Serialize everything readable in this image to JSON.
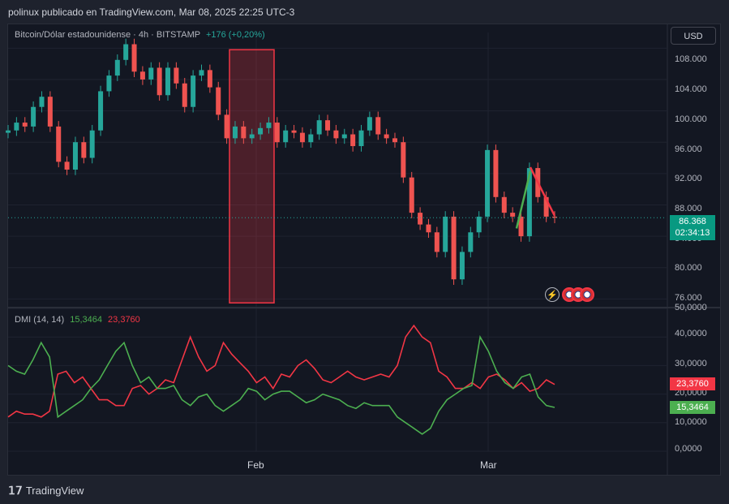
{
  "header": {
    "attribution": "polinux publicado en TradingView.com, Mar 08, 2025 22:25 UTC-3"
  },
  "legend": {
    "symbol": "Bitcoin/Dólar estadounidense · 4h · BITSTAMP",
    "change": "+176 (+0,20%)"
  },
  "currency_button": "USD",
  "price_axis": [
    "108.000",
    "104.000",
    "100.000",
    "96.000",
    "92.000",
    "88.000",
    "84.000",
    "80.000",
    "76.000"
  ],
  "last_price": {
    "value": "86.368",
    "countdown": "02:34:13"
  },
  "dmi": {
    "label": "DMI (14, 14)",
    "plus_value": "15,3464",
    "minus_value": "23,3760"
  },
  "dmi_axis": [
    "50,0000",
    "40,0000",
    "30,0000",
    "20,0000",
    "10,0000",
    "0,0000"
  ],
  "x_axis": [
    "Feb",
    "Mar"
  ],
  "footer": {
    "brand": "TradingView"
  },
  "colors": {
    "up": "#26a69a",
    "down": "#ef5350",
    "plus_di": "#4caf50",
    "minus_di": "#f23645",
    "background": "#131722"
  },
  "chart_data": [
    {
      "type": "line",
      "title": "Bitcoin/Dólar estadounidense · 4h · BITSTAMP",
      "ylim": [
        75000,
        110000
      ],
      "x_ticks": [
        "Feb",
        "Mar"
      ],
      "series": [
        {
          "values": [
            97500,
            98500,
            98000,
            100500,
            101800,
            98000,
            93500,
            92500,
            96000,
            94000,
            97500,
            102500,
            104500,
            106500,
            108500,
            105000,
            104000,
            105500,
            102000,
            105500,
            103500,
            100500,
            104500,
            105200,
            103000,
            99500,
            96500,
            98000,
            96500,
            97000,
            97800,
            98500,
            96000,
            97500,
            97200,
            96000,
            97000,
            98800,
            97500,
            96500,
            97000,
            95500,
            97500,
            99200,
            97000,
            96500,
            96000,
            91500,
            87000,
            85500,
            84500,
            82000,
            86500,
            78500,
            82000,
            84500,
            86500,
            95000,
            89000,
            87000,
            86500,
            84000,
            92700,
            89000,
            86500,
            86368
          ]
        }
      ],
      "annotations": {
        "highlight_box_price": [
          75500,
          107800
        ],
        "trend_lines": "green up-line and red down-line at right end"
      }
    },
    {
      "type": "line",
      "title": "DMI (14, 14)",
      "ylim": [
        0,
        50
      ],
      "series": [
        {
          "name": "+DI",
          "values": [
            30,
            28,
            27,
            32,
            38,
            33,
            12,
            14,
            16,
            18,
            22,
            25,
            30,
            35,
            38,
            30,
            24,
            26,
            22,
            22,
            23,
            18,
            16,
            19,
            20,
            16,
            14,
            16,
            18,
            22,
            21,
            18,
            20,
            21,
            21,
            19,
            17,
            18,
            20,
            19,
            18,
            16,
            15,
            17,
            16,
            16,
            16,
            12,
            10,
            8,
            6,
            8,
            14,
            18,
            20,
            22,
            23,
            40,
            35,
            28,
            24,
            22,
            26,
            27,
            19,
            16,
            15.3464
          ]
        },
        {
          "name": "-DI",
          "values": [
            12,
            14,
            13,
            13,
            12,
            14,
            27,
            28,
            24,
            26,
            22,
            18,
            18,
            16,
            16,
            22,
            23,
            20,
            22,
            25,
            24,
            32,
            40,
            33,
            28,
            30,
            38,
            34,
            31,
            28,
            24,
            26,
            22,
            27,
            26,
            30,
            32,
            29,
            25,
            24,
            26,
            28,
            26,
            25,
            26,
            27,
            26,
            30,
            40,
            44,
            40,
            38,
            28,
            26,
            22,
            22,
            24,
            22,
            26,
            27,
            25,
            22,
            24,
            21,
            22,
            25,
            23.376
          ]
        }
      ]
    }
  ]
}
